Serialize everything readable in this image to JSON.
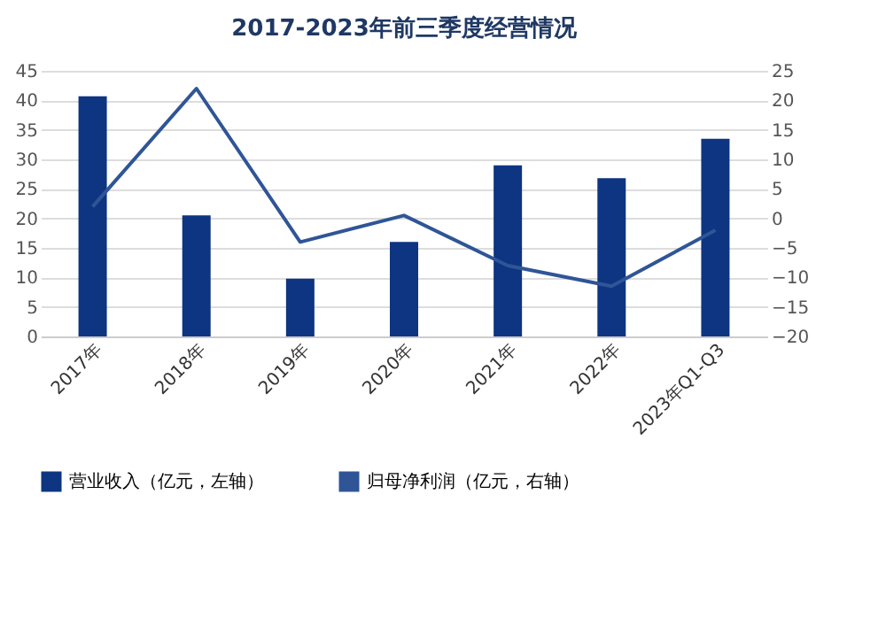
{
  "chart_data": {
    "type": "bar",
    "title": "2017-2023年前三季度经营情况",
    "categories": [
      "2017年",
      "2018年",
      "2019年",
      "2020年",
      "2021年",
      "2022年",
      "2023年Q1-Q3"
    ],
    "series": [
      {
        "name": "营业收入（亿元，左轴）",
        "color": "#0d3581",
        "values": [
          40.7,
          20.5,
          9.8,
          16,
          29,
          26.8,
          33.5
        ]
      },
      {
        "name": "归母净利润（亿元，右轴）",
        "color": "#2f5597",
        "type": "line",
        "axis": "y2",
        "values": [
          2,
          22,
          -4,
          0.5,
          -8,
          -11.5,
          -2
        ]
      }
    ],
    "ylim": [
      0,
      45
    ],
    "yticks": [
      0,
      5,
      10,
      15,
      20,
      25,
      30,
      35,
      40,
      45
    ],
    "y2lim": [
      -20,
      25
    ],
    "y2ticks": [
      -20,
      -15,
      -10,
      -5,
      0,
      5,
      10,
      15,
      20,
      25
    ],
    "grid": "y",
    "legend": "bottom"
  }
}
